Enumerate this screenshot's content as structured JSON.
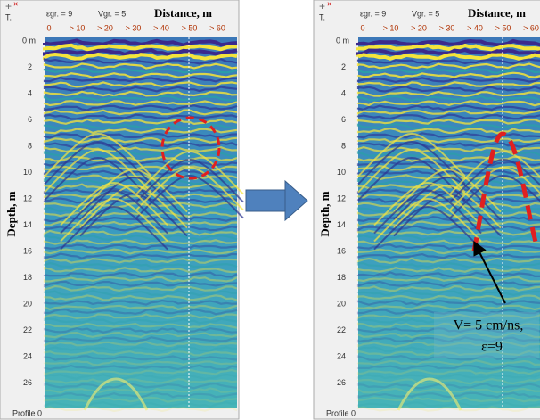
{
  "panels": [
    {
      "header": {
        "icon": "T.",
        "eps": "εgr. = 9",
        "vel": "Vgr. = 5",
        "axis_title": "Distance, m"
      },
      "x_ticks": [
        "0",
        "> 10",
        "> 20",
        "> 30",
        "> 40",
        "> 50",
        "> 60"
      ],
      "y_ticks": [
        "0 m",
        "2",
        "4",
        "6",
        "8",
        "10",
        "12",
        "14",
        "16",
        "18",
        "20",
        "22",
        "24",
        "26"
      ],
      "y_title": "Depth, m",
      "footer": "Profile 0"
    },
    {
      "header": {
        "icon": "T.",
        "eps": "εgr. = 9",
        "vel": "Vgr. = 5",
        "axis_title": "Distance, m"
      },
      "x_ticks": [
        "0",
        "> 10",
        "> 20",
        "> 30",
        "> 40",
        "> 50",
        "> 60"
      ],
      "y_ticks": [
        "0 m",
        "2",
        "4",
        "6",
        "8",
        "10",
        "12",
        "14",
        "16",
        "18",
        "20",
        "22",
        "24",
        "26"
      ],
      "y_title": "Depth, m",
      "footer": "Profile 0",
      "annotation": [
        "V= 5 cm/ns,",
        "ε=9"
      ]
    }
  ]
}
